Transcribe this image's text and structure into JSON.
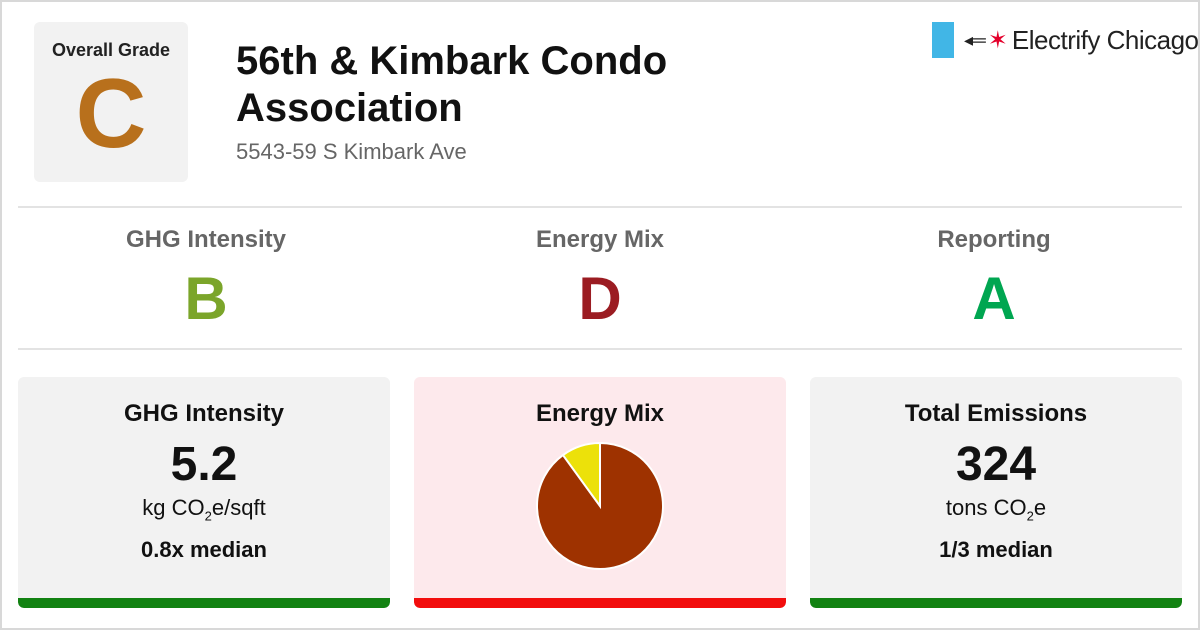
{
  "overall": {
    "label": "Overall Grade",
    "grade": "C",
    "color": "#b8701c"
  },
  "building": {
    "name": "56th & Kimbark Condo Association",
    "address": "5543-59 S Kimbark Ave"
  },
  "brand": {
    "name": "Electrify Chicago",
    "flag_color": "#41b6e6",
    "star_color": "#e4002b",
    "icons": [
      "chicago-flag-icon",
      "plug-icon",
      "star-icon"
    ]
  },
  "subgrades": [
    {
      "label": "GHG Intensity",
      "grade": "B",
      "color": "#7ba52a"
    },
    {
      "label": "Energy Mix",
      "grade": "D",
      "color": "#9b1c22"
    },
    {
      "label": "Reporting",
      "grade": "A",
      "color": "#00a651"
    }
  ],
  "cards": {
    "ghg": {
      "title": "GHG Intensity",
      "value": "5.2",
      "unit_pre": "kg CO",
      "unit_sub": "2",
      "unit_post": "e/sqft",
      "compare": "0.8x median",
      "bar_color": "#128212"
    },
    "mix": {
      "title": "Energy Mix",
      "bar_color": "#f20d0d"
    },
    "total": {
      "title": "Total Emissions",
      "value": "324",
      "unit_pre": "tons CO",
      "unit_sub": "2",
      "unit_post": "e",
      "compare": "1/3 median",
      "bar_color": "#128212"
    }
  },
  "chart_data": {
    "type": "pie",
    "title": "",
    "slices": [
      {
        "value": 0.9,
        "color": "#9e3200"
      },
      {
        "value": 0.1,
        "color": "#ece10a"
      }
    ]
  }
}
